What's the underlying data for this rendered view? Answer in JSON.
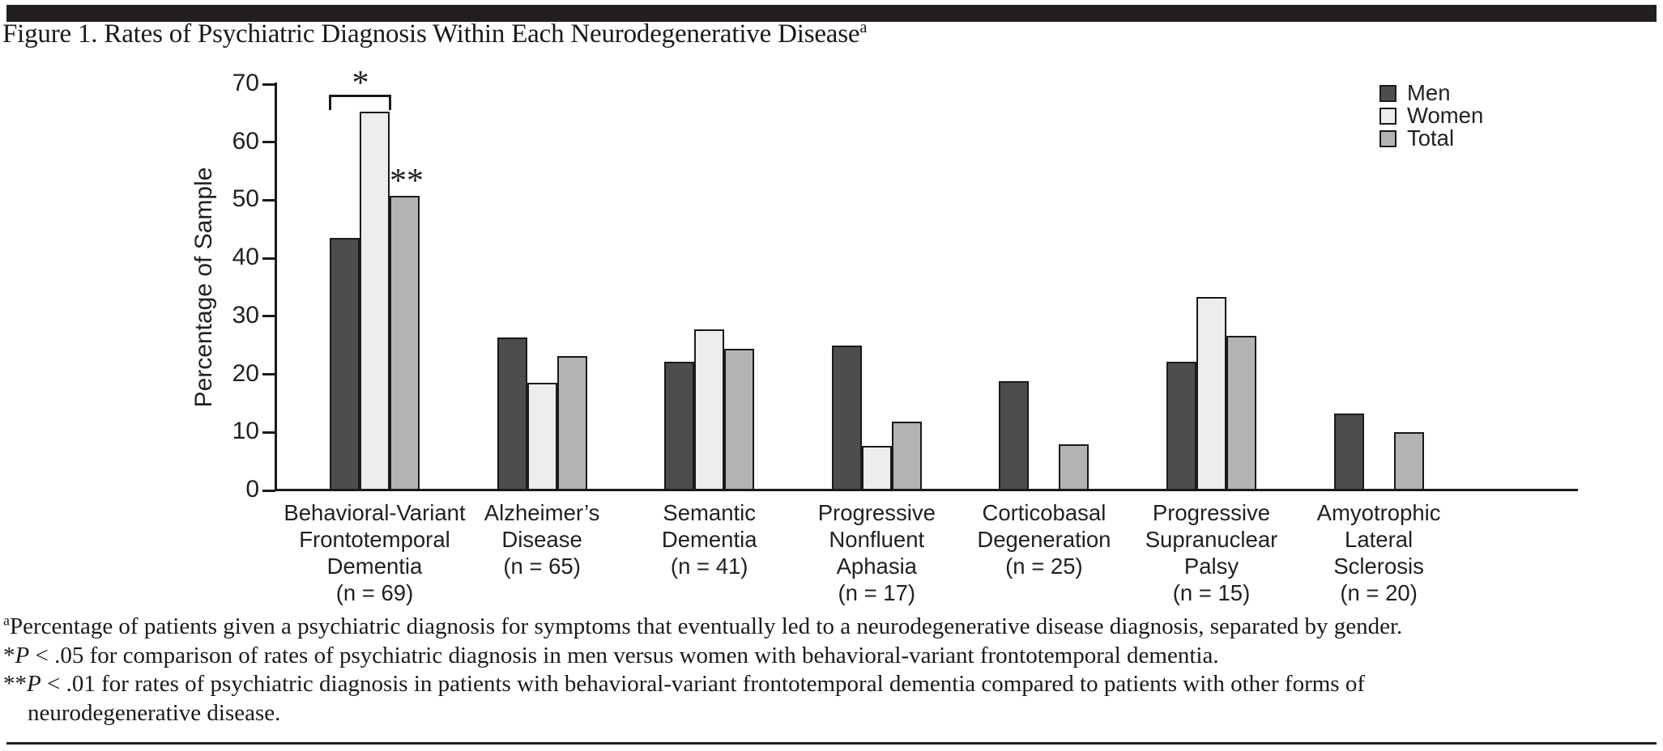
{
  "page": {
    "title": "Figure 1. Rates of Psychiatric Diagnosis Within Each Neurodegenerative Disease",
    "title_superscript": "a"
  },
  "chart_data": {
    "type": "bar",
    "title": "Rates of Psychiatric Diagnosis Within Each Neurodegenerative Disease",
    "xlabel": "",
    "ylabel": "Percentage of Sample",
    "ylim": [
      0,
      70
    ],
    "ytick_step": 10,
    "grid": false,
    "legend_position": "top-right",
    "categories": [
      {
        "label": "Behavioral-Variant Frontotemporal Dementia",
        "n": 69,
        "lines": [
          "Behavioral-Variant",
          "Frontotemporal",
          "Dementia",
          "(n = 69)"
        ]
      },
      {
        "label": "Alzheimer's Disease",
        "n": 65,
        "lines": [
          "Alzheimer’s",
          "Disease",
          "(n = 65)"
        ]
      },
      {
        "label": "Semantic Dementia",
        "n": 41,
        "lines": [
          "Semantic",
          "Dementia",
          "(n = 41)"
        ]
      },
      {
        "label": "Progressive Nonfluent Aphasia",
        "n": 17,
        "lines": [
          "Progressive",
          "Nonfluent",
          "Aphasia",
          "(n = 17)"
        ]
      },
      {
        "label": "Corticobasal Degeneration",
        "n": 25,
        "lines": [
          "Corticobasal",
          "Degeneration",
          "(n = 25)"
        ]
      },
      {
        "label": "Progressive Supranuclear Palsy",
        "n": 15,
        "lines": [
          "Progressive",
          "Supranuclear",
          "Palsy",
          "(n = 15)"
        ]
      },
      {
        "label": "Amyotrophic Lateral Sclerosis",
        "n": 20,
        "lines": [
          "Amyotrophic",
          "Lateral",
          "Sclerosis",
          "(n = 20)"
        ]
      }
    ],
    "series": [
      {
        "name": "Men",
        "color": "#4d4d4d",
        "values": [
          43.5,
          26.4,
          22.2,
          25.0,
          18.8,
          22.2,
          13.3
        ]
      },
      {
        "name": "Women",
        "color": "#ededed",
        "values": [
          65.2,
          18.5,
          27.8,
          7.7,
          0,
          33.3,
          0
        ]
      },
      {
        "name": "Total",
        "color": "#b3b3b3",
        "values": [
          50.7,
          23.2,
          24.4,
          11.8,
          8.0,
          26.7,
          10.0
        ]
      }
    ],
    "annotations": {
      "bracket_symbol": "*",
      "bracket_note": "Men vs Women bars of first category",
      "double_asterisk_symbol": "**",
      "double_asterisk_note": "above Total bar of first category"
    }
  },
  "footnotes": [
    [
      {
        "t": "a",
        "s": "sup"
      },
      {
        "t": "Percentage of patients given a psychiatric diagnosis for symptoms that eventually led to a neurodegenerative disease diagnosis, separated by gender."
      }
    ],
    [
      {
        "t": "*"
      },
      {
        "t": "P",
        "s": "i"
      },
      {
        "t": " < .05 for comparison of rates of psychiatric diagnosis in men versus women with behavioral-variant frontotemporal dementia."
      }
    ],
    [
      {
        "t": "**"
      },
      {
        "t": "P",
        "s": "i"
      },
      {
        "t": " < .01 for rates of psychiatric diagnosis in patients with behavioral-variant frontotemporal dementia compared to patients with other forms of"
      }
    ],
    [
      {
        "t": "neurodegenerative disease.",
        "s": "indent"
      }
    ]
  ]
}
